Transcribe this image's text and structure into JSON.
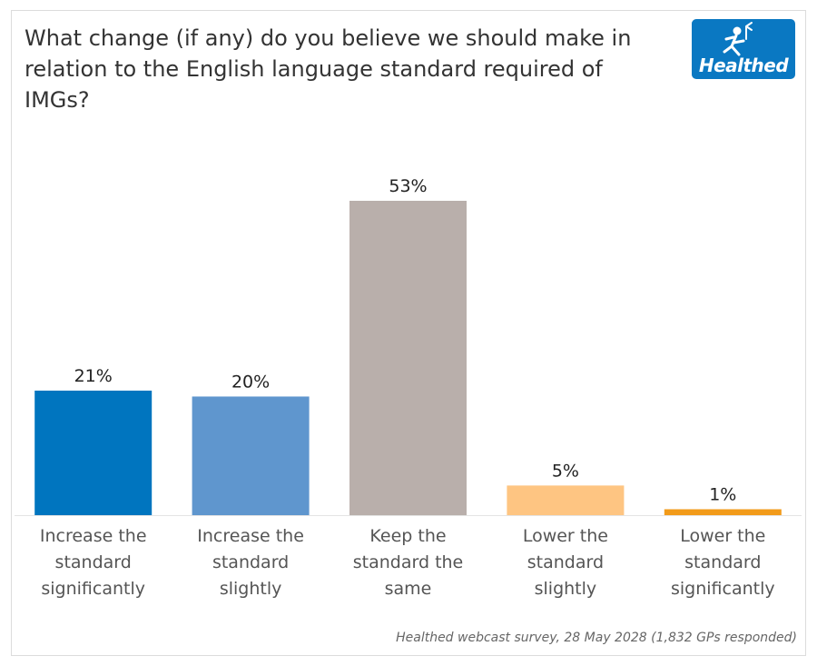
{
  "header": {
    "title": "What change (if any) do you believe we should make in relation to the English language standard required of IMGs?"
  },
  "logo": {
    "text": "Healthed",
    "icon": "hermes-figure-icon",
    "background": "#0a78c2"
  },
  "chart_data": {
    "type": "bar",
    "title": "What change (if any) do you believe we should make in relation to the English language standard required of IMGs?",
    "categories": [
      [
        "Increase the",
        "standard",
        "significantly"
      ],
      [
        "Increase the",
        "standard",
        "slightly"
      ],
      [
        "Keep the",
        "standard the",
        "same"
      ],
      [
        "Lower the",
        "standard",
        "slightly"
      ],
      [
        "Lower the",
        "standard",
        "significantly"
      ]
    ],
    "values": [
      21,
      20,
      53,
      5,
      1
    ],
    "value_labels": [
      "21%",
      "20%",
      "53%",
      "5%",
      "1%"
    ],
    "colors": [
      "#0075bf",
      "#5f96ce",
      "#b9afab",
      "#fec582",
      "#f29b1a"
    ],
    "xlabel": "",
    "ylabel": "",
    "ylim": [
      0,
      53
    ],
    "grid": false,
    "legend": "none"
  },
  "footer": {
    "source": "Healthed webcast survey, 28 May 2028 (1,832 GPs responded)"
  }
}
